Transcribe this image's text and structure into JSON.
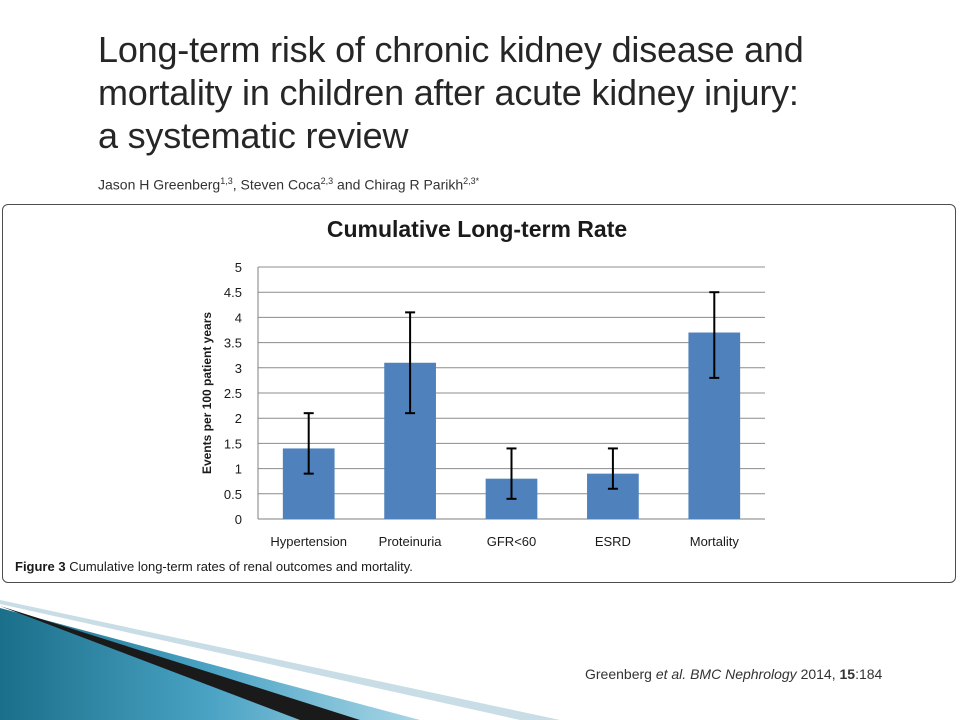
{
  "slide": {
    "title_lines": [
      "Long-term risk of chronic kidney disease and",
      "mortality in children after acute kidney injury:",
      "a systematic review"
    ],
    "authors": [
      {
        "name": "Jason H Greenberg",
        "sup": "1,3",
        "sep": ", "
      },
      {
        "name": "Steven Coca",
        "sup": "2,3",
        "sep": " and "
      },
      {
        "name": "Chirag R Parikh",
        "sup": "2,3*",
        "sep": ""
      }
    ]
  },
  "figure": {
    "caption_label": "Figure 3",
    "caption_text": "Cumulative long-term rates of renal outcomes and mortality."
  },
  "chart_data": {
    "type": "bar",
    "title": "Cumulative Long-term Rate",
    "xlabel": "",
    "ylabel": "Events per 100 patient years",
    "categories": [
      "Hypertension",
      "Proteinuria",
      "GFR<60",
      "ESRD",
      "Mortality"
    ],
    "values": [
      1.4,
      3.1,
      0.8,
      0.9,
      3.7
    ],
    "error_low": [
      0.9,
      2.1,
      0.4,
      0.6,
      2.8
    ],
    "error_high": [
      2.1,
      4.1,
      1.4,
      1.4,
      4.5
    ],
    "ylim": [
      0,
      5
    ],
    "yticks": [
      "0",
      "0.5",
      "1",
      "1.5",
      "2",
      "2.5",
      "3",
      "3.5",
      "4",
      "4.5",
      "5"
    ],
    "grid": true,
    "legend": "none",
    "bar_color": "#4f81bd"
  },
  "citation": {
    "authors": "Greenberg",
    "etal": "et al.",
    "journal": "BMC Nephrology",
    "year": "2014,",
    "volume": "15",
    "pages": ":184"
  }
}
